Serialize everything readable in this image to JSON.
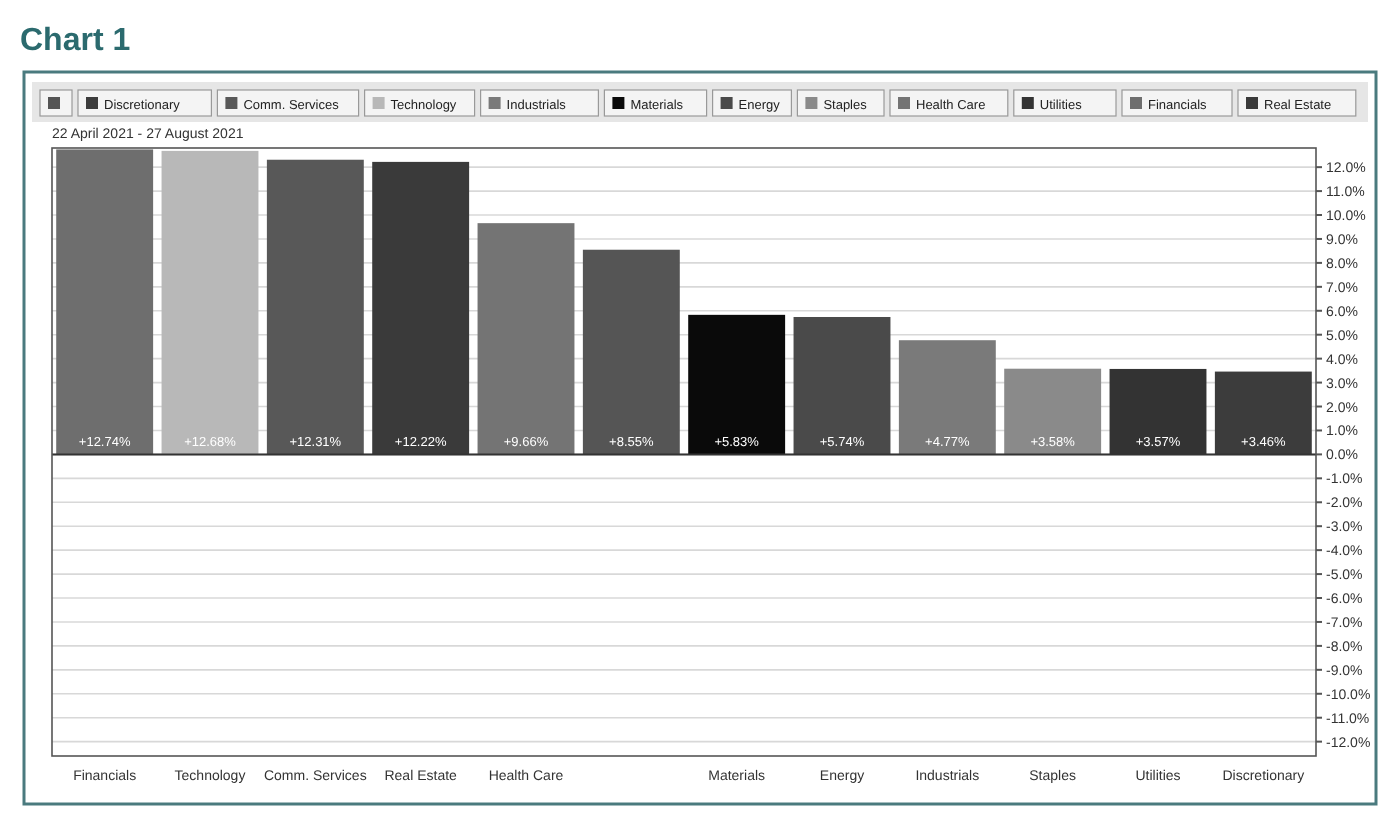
{
  "chart_data": {
    "type": "bar",
    "title": "Chart 1",
    "subtitle": "22 April 2021 - 27 August 2021",
    "categories": [
      "Financials",
      "Technology",
      "Comm. Services",
      "Real Estate",
      "Health Care",
      null,
      "Materials",
      "Energy",
      "Industrials",
      "Staples",
      "Utilities",
      "Discretionary"
    ],
    "series": [
      {
        "color": "#555555",
        "values": [
          null,
          null,
          null,
          null,
          null,
          8.55,
          null,
          null,
          null,
          null,
          null,
          null
        ],
        "value_labels": [
          null,
          null,
          null,
          null,
          null,
          "+8.55%",
          null,
          null,
          null,
          null,
          null,
          null
        ]
      },
      {
        "name": "Discretionary",
        "color": "#3c3c3c",
        "values": [
          null,
          null,
          null,
          null,
          null,
          null,
          null,
          null,
          null,
          null,
          null,
          3.46
        ],
        "value_labels": [
          null,
          null,
          null,
          null,
          null,
          null,
          null,
          null,
          null,
          null,
          null,
          "+3.46%"
        ]
      },
      {
        "name": "Comm. Services",
        "color": "#585858",
        "values": [
          null,
          null,
          12.31,
          null,
          null,
          null,
          null,
          null,
          null,
          null,
          null,
          null
        ],
        "value_labels": [
          null,
          null,
          "+12.31%",
          null,
          null,
          null,
          null,
          null,
          null,
          null,
          null,
          null
        ]
      },
      {
        "name": "Technology",
        "color": "#b8b8b8",
        "values": [
          null,
          12.68,
          null,
          null,
          null,
          null,
          null,
          null,
          null,
          null,
          null,
          null
        ],
        "value_labels": [
          null,
          "+12.68%",
          null,
          null,
          null,
          null,
          null,
          null,
          null,
          null,
          null,
          null
        ]
      },
      {
        "name": "Industrials",
        "color": "#7a7a7a",
        "values": [
          null,
          null,
          null,
          null,
          null,
          null,
          null,
          null,
          4.77,
          null,
          null,
          null
        ],
        "value_labels": [
          null,
          null,
          null,
          null,
          null,
          null,
          null,
          null,
          "+4.77%",
          null,
          null,
          null
        ]
      },
      {
        "name": "Materials",
        "color": "#0a0a0a",
        "values": [
          null,
          null,
          null,
          null,
          null,
          null,
          5.83,
          null,
          null,
          null,
          null,
          null
        ],
        "value_labels": [
          null,
          null,
          null,
          null,
          null,
          null,
          "+5.83%",
          null,
          null,
          null,
          null,
          null
        ]
      },
      {
        "name": "Energy",
        "color": "#4a4a4a",
        "values": [
          null,
          null,
          null,
          null,
          null,
          null,
          null,
          5.74,
          null,
          null,
          null,
          null
        ],
        "value_labels": [
          null,
          null,
          null,
          null,
          null,
          null,
          null,
          "+5.74%",
          null,
          null,
          null,
          null
        ]
      },
      {
        "name": "Staples",
        "color": "#8a8a8a",
        "values": [
          null,
          null,
          null,
          null,
          null,
          null,
          null,
          null,
          null,
          3.58,
          null,
          null
        ],
        "value_labels": [
          null,
          null,
          null,
          null,
          null,
          null,
          null,
          null,
          null,
          "+3.58%",
          null,
          null
        ]
      },
      {
        "name": "Health Care",
        "color": "#747474",
        "values": [
          null,
          null,
          null,
          null,
          9.66,
          null,
          null,
          null,
          null,
          null,
          null,
          null
        ],
        "value_labels": [
          null,
          null,
          null,
          null,
          "+9.66%",
          null,
          null,
          null,
          null,
          null,
          null,
          null
        ]
      },
      {
        "name": "Utilities",
        "color": "#333333",
        "values": [
          null,
          null,
          null,
          null,
          null,
          null,
          null,
          null,
          null,
          null,
          3.57,
          null
        ],
        "value_labels": [
          null,
          null,
          null,
          null,
          null,
          null,
          null,
          null,
          null,
          null,
          "+3.57%",
          null
        ]
      },
      {
        "name": "Financials",
        "color": "#6e6e6e",
        "values": [
          12.74,
          null,
          null,
          null,
          null,
          null,
          null,
          null,
          null,
          null,
          null,
          null
        ],
        "value_labels": [
          "+12.74%",
          null,
          null,
          null,
          null,
          null,
          null,
          null,
          null,
          null,
          null,
          null
        ]
      },
      {
        "name": "Real Estate",
        "color": "#3a3a3a",
        "values": [
          null,
          null,
          null,
          12.22,
          null,
          null,
          null,
          null,
          null,
          null,
          null,
          null
        ],
        "value_labels": [
          null,
          null,
          null,
          "+12.22%",
          null,
          null,
          null,
          null,
          null,
          null,
          null,
          null
        ]
      }
    ],
    "ylim": [
      -12.6,
      12.8
    ],
    "yticks": [
      {
        "value": 12,
        "label": "12.0%"
      },
      {
        "value": 11,
        "label": "11.0%"
      },
      {
        "value": 10,
        "label": "10.0%"
      },
      {
        "value": 9,
        "label": "9.0%"
      },
      {
        "value": 8,
        "label": "8.0%"
      },
      {
        "value": 7,
        "label": "7.0%"
      },
      {
        "value": 6,
        "label": "6.0%"
      },
      {
        "value": 5,
        "label": "5.0%"
      },
      {
        "value": 4,
        "label": "4.0%"
      },
      {
        "value": 3,
        "label": "3.0%"
      },
      {
        "value": 2,
        "label": "2.0%"
      },
      {
        "value": 1,
        "label": "1.0%"
      },
      {
        "value": 0,
        "label": "0.0%"
      },
      {
        "value": -1,
        "label": "-1.0%"
      },
      {
        "value": -2,
        "label": "-2.0%"
      },
      {
        "value": -3,
        "label": "-3.0%"
      },
      {
        "value": -4,
        "label": "-4.0%"
      },
      {
        "value": -5,
        "label": "-5.0%"
      },
      {
        "value": -6,
        "label": "-6.0%"
      },
      {
        "value": -7,
        "label": "-7.0%"
      },
      {
        "value": -8,
        "label": "-8.0%"
      },
      {
        "value": -9,
        "label": "-9.0%"
      },
      {
        "value": -10,
        "label": "-10.0%"
      },
      {
        "value": -11,
        "label": "-11.0%"
      },
      {
        "value": -12,
        "label": "-12.0%"
      }
    ],
    "grid": "y",
    "legend": "top left"
  }
}
